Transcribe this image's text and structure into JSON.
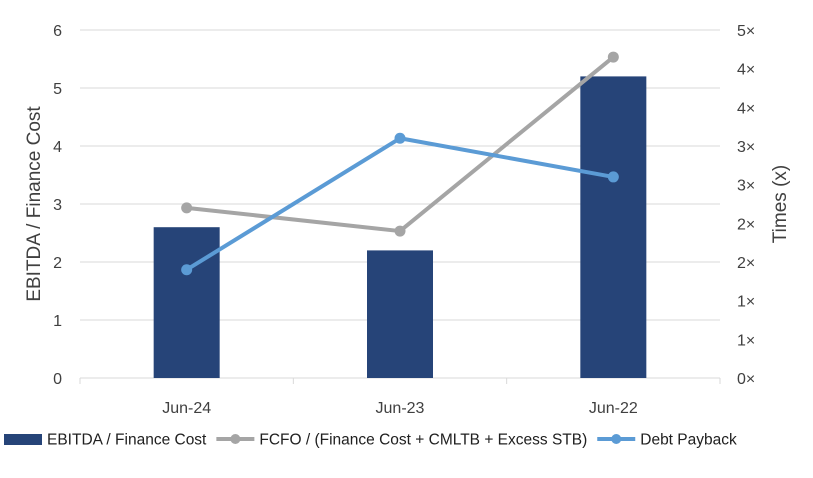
{
  "chart_data": {
    "type": "bar",
    "categories": [
      "Jun-24",
      "Jun-23",
      "Jun-22"
    ],
    "series": [
      {
        "name": "EBITDA / Finance Cost",
        "type": "bar",
        "axis": "left",
        "values": [
          2.6,
          2.2,
          5.2
        ],
        "color": "#264478"
      },
      {
        "name": "FCFO / (Finance Cost + CMLTB + Excess STB)",
        "type": "line",
        "axis": "right",
        "values": [
          2.2,
          1.9,
          4.15
        ],
        "color": "#A5A5A5"
      },
      {
        "name": "Debt Payback",
        "type": "line",
        "axis": "right",
        "values": [
          1.4,
          3.1,
          2.6
        ],
        "color": "#5B9BD5"
      }
    ],
    "ylabel": "EBITDA / Finance Cost",
    "ylabel_right": "Times (x)",
    "ylim": [
      0,
      6
    ],
    "ylim_right": [
      0,
      4.5
    ],
    "y_ticks": [
      "0",
      "1",
      "2",
      "3",
      "4",
      "5",
      "6"
    ],
    "y_right_ticks": [
      "0×",
      "1×",
      "1×",
      "2×",
      "2×",
      "3×",
      "3×",
      "4×",
      "4×",
      "5×"
    ],
    "grid": true,
    "legend_position": "bottom"
  }
}
